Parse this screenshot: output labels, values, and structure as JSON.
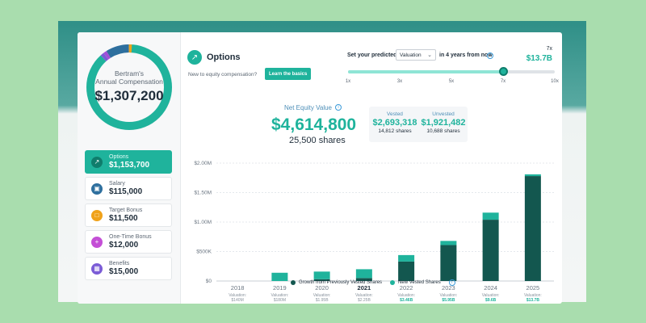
{
  "colors": {
    "accent": "#1fb39c",
    "dark_teal": "#13574f",
    "purple": "#a34fd6",
    "blue": "#2e6f9e",
    "orange": "#f0a21a",
    "info_blue": "#3a9ad9"
  },
  "donut": {
    "name": "Bertram's",
    "subtitle": "Annual Compensation",
    "total": "$1,307,200",
    "segments": [
      {
        "label": "Options",
        "value": 1153700,
        "color": "#1fb39c"
      },
      {
        "label": "Salary",
        "value": 115000,
        "color": "#2e6f9e"
      },
      {
        "label": "Target Bonus",
        "value": 11500,
        "color": "#f0a21a"
      },
      {
        "label": "One-Time Bonus",
        "value": 12000,
        "color": "#a34fd6"
      },
      {
        "label": "Benefits",
        "value": 15000,
        "color": "#7b5cd6"
      }
    ]
  },
  "sidebar": {
    "items": [
      {
        "label": "Options",
        "value": "$1,153,700",
        "icon": "trend-up-icon",
        "color": "#0f7d6c",
        "active": true
      },
      {
        "label": "Salary",
        "value": "$115,000",
        "icon": "cash-icon",
        "color": "#2e6f9e",
        "active": false
      },
      {
        "label": "Target Bonus",
        "value": "$11,500",
        "icon": "bonus-icon",
        "color": "#f0a21a",
        "active": false
      },
      {
        "label": "One-Time Bonus",
        "value": "$12,000",
        "icon": "plus-icon",
        "color": "#c44fd6",
        "active": false
      },
      {
        "label": "Benefits",
        "value": "$15,000",
        "icon": "gift-icon",
        "color": "#7b5cd6",
        "active": false
      }
    ]
  },
  "header": {
    "title": "Options",
    "prompt": "New to equity compensation?",
    "learn_button": "Learn the basics"
  },
  "predictor": {
    "label": "Set your predicted",
    "selected": "Valuation",
    "suffix": "in 4 years from now",
    "multiplier_label": "7x",
    "multiplier_value": "$13.7B",
    "slider_value": 7,
    "slider_min": 1,
    "slider_max": 10,
    "ticks": [
      "1x",
      "3x",
      "5x",
      "7x",
      "10x"
    ]
  },
  "summary": {
    "label": "Net Equity Value",
    "value": "$4,614,800",
    "shares": "25,500 shares",
    "vested_label": "Vested",
    "vested_value": "$2,693,318",
    "vested_shares": "14,812 shares",
    "unvested_label": "Unvested",
    "unvested_value": "$1,921,482",
    "unvested_shares": "10,688 shares"
  },
  "chart_data": {
    "type": "bar",
    "stacked": true,
    "categories": [
      "2018",
      "2019",
      "2020",
      "2021",
      "2022",
      "2023",
      "2024",
      "2025"
    ],
    "valuations": [
      "$140M",
      "$180M",
      "$1.95B",
      "$2.25B",
      "$3.46B",
      "$5.95B",
      "$9.6B",
      "$13.7B"
    ],
    "current_year": "2021",
    "series": [
      {
        "name": "Growth from Previously Vested Shares",
        "color": "#13574f",
        "values": [
          0,
          0,
          30000,
          50000,
          330000,
          610000,
          1040000,
          1780000
        ]
      },
      {
        "name": "New Vested Shares",
        "color": "#1fb39c",
        "values": [
          0,
          140000,
          130000,
          150000,
          110000,
          70000,
          120000,
          30000
        ]
      }
    ],
    "yticks": [
      "$0",
      "$500K",
      "$1.00M",
      "$1.50M",
      "$2.00M"
    ],
    "ylim": [
      0,
      2000000
    ],
    "valuation_label": "Valuation:"
  }
}
